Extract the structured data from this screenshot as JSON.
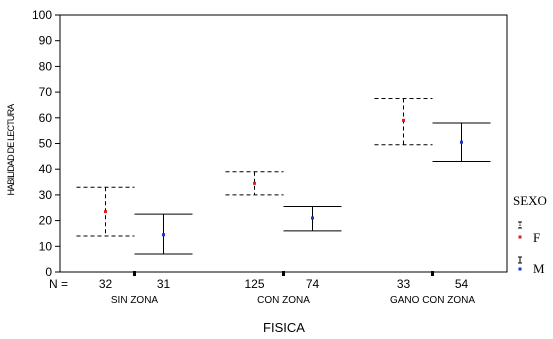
{
  "chart_data": {
    "type": "errorbar",
    "title": "",
    "xlabel": "FISICA",
    "ylabel": "HABILIDAD DE LECTURA",
    "ylim": [
      0,
      100
    ],
    "yticks": [
      "0",
      "10",
      "20",
      "30",
      "40",
      "50",
      "60",
      "70",
      "80",
      "90",
      "100"
    ],
    "n_label": "N =",
    "categories": [
      "SIN ZONA",
      "CON ZONA",
      "GANO CON ZONA"
    ],
    "legend": {
      "title": "SEXO",
      "placement": "right"
    },
    "series": [
      {
        "name": "F",
        "color": "#e0201b",
        "line_style": "dashed",
        "n": [
          "32",
          "125",
          "33"
        ],
        "mean": [
          23.5,
          34.5,
          59
        ],
        "lower": [
          14,
          30,
          49.5
        ],
        "upper": [
          33,
          39,
          67.5
        ]
      },
      {
        "name": "M",
        "color": "#1a35d6",
        "line_style": "solid",
        "n": [
          "31",
          "74",
          "54"
        ],
        "mean": [
          14.5,
          21,
          50.5
        ],
        "lower": [
          7,
          16,
          43
        ],
        "upper": [
          22.5,
          25.5,
          58
        ]
      }
    ]
  }
}
